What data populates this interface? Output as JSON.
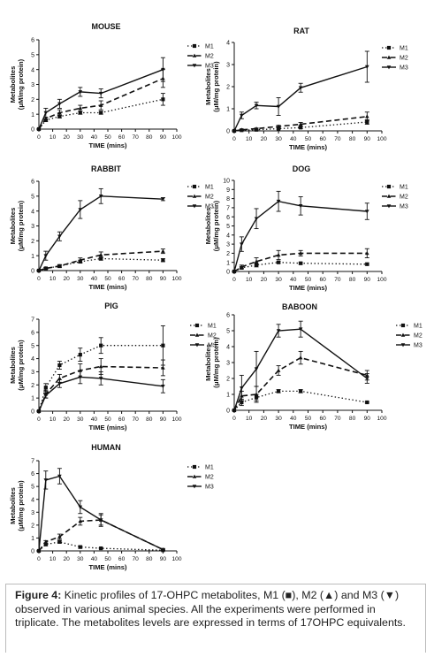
{
  "chart_data": [
    {
      "type": "line",
      "title": "MOUSE",
      "xlabel": "TIME (mins)",
      "ylabel": [
        "Metabolites",
        "(μM/mg protein)"
      ],
      "xlim": [
        0,
        100
      ],
      "ylim": [
        0,
        6
      ],
      "xticks": [
        0,
        10,
        20,
        30,
        40,
        50,
        60,
        70,
        80,
        90,
        100
      ],
      "yticks": [
        0,
        1,
        2,
        3,
        4,
        5,
        6
      ],
      "x": [
        0,
        5,
        15,
        30,
        45,
        90
      ],
      "series": [
        {
          "name": "M1",
          "values": [
            0,
            0.6,
            0.85,
            1.1,
            1.1,
            2.0
          ],
          "errors": [
            0,
            0.1,
            0.1,
            0.1,
            0.1,
            0.4
          ]
        },
        {
          "name": "M2",
          "values": [
            0,
            0.7,
            1.1,
            1.4,
            1.6,
            3.4
          ],
          "errors": [
            0,
            0.1,
            0.2,
            0.2,
            0.3,
            0.6
          ]
        },
        {
          "name": "M3",
          "values": [
            0,
            1.1,
            1.7,
            2.5,
            2.4,
            4.0
          ],
          "errors": [
            0,
            0.3,
            0.3,
            0.3,
            0.3,
            0.8
          ]
        }
      ],
      "legend": "top-right"
    },
    {
      "type": "line",
      "title": "RAT",
      "xlabel": "TIME (mins)",
      "ylabel": [
        "Metabolites",
        "(μM/mg protein)"
      ],
      "xlim": [
        0,
        100
      ],
      "ylim": [
        0,
        4
      ],
      "xticks": [
        0,
        10,
        20,
        30,
        40,
        50,
        60,
        70,
        80,
        90,
        100
      ],
      "yticks": [
        0,
        1,
        2,
        3,
        4
      ],
      "x": [
        0,
        5,
        15,
        30,
        45,
        90
      ],
      "series": [
        {
          "name": "M1",
          "values": [
            0,
            0.03,
            0.05,
            0.1,
            0.15,
            0.4
          ],
          "errors": [
            0,
            0.02,
            0.02,
            0.03,
            0.05,
            0.1
          ]
        },
        {
          "name": "M2",
          "values": [
            0,
            0.05,
            0.1,
            0.2,
            0.3,
            0.65
          ],
          "errors": [
            0,
            0.02,
            0.03,
            0.05,
            0.08,
            0.2
          ]
        },
        {
          "name": "M3",
          "values": [
            0,
            0.7,
            1.15,
            1.1,
            1.95,
            2.9
          ],
          "errors": [
            0,
            0.15,
            0.15,
            0.4,
            0.2,
            0.7
          ]
        }
      ],
      "legend": "top-right"
    },
    {
      "type": "line",
      "title": "RABBIT",
      "xlabel": "TIME (mins)",
      "ylabel": [
        "Metabolites",
        "(μM/mg protein)"
      ],
      "xlim": [
        0,
        100
      ],
      "ylim": [
        0,
        6
      ],
      "xticks": [
        0,
        10,
        20,
        30,
        40,
        50,
        60,
        70,
        80,
        90,
        100
      ],
      "yticks": [
        0,
        1,
        2,
        3,
        4,
        5,
        6
      ],
      "x": [
        0,
        5,
        15,
        30,
        45,
        90
      ],
      "series": [
        {
          "name": "M1",
          "values": [
            0,
            0.15,
            0.3,
            0.6,
            0.8,
            0.7
          ],
          "errors": [
            0,
            0.05,
            0.05,
            0.1,
            0.1,
            0.1
          ]
        },
        {
          "name": "M2",
          "values": [
            0,
            0.15,
            0.3,
            0.7,
            1.05,
            1.3
          ],
          "errors": [
            0,
            0.05,
            0.1,
            0.15,
            0.2,
            0.15
          ]
        },
        {
          "name": "M3",
          "values": [
            0,
            1.0,
            2.3,
            4.1,
            5.0,
            4.8
          ],
          "errors": [
            0,
            0.3,
            0.3,
            0.6,
            0.5,
            0.1
          ]
        }
      ],
      "legend": "top-right"
    },
    {
      "type": "line",
      "title": "DOG",
      "xlabel": "TIME (mins)",
      "ylabel": [
        "Metabolites",
        "(μM/mg protein)"
      ],
      "xlim": [
        0,
        100
      ],
      "ylim": [
        0,
        10
      ],
      "xticks": [
        0,
        10,
        20,
        30,
        40,
        50,
        60,
        70,
        80,
        90,
        100
      ],
      "yticks": [
        0,
        1,
        2,
        3,
        4,
        5,
        6,
        7,
        8,
        9,
        10
      ],
      "x": [
        0,
        5,
        15,
        30,
        45,
        90
      ],
      "series": [
        {
          "name": "M1",
          "values": [
            0,
            0.4,
            0.7,
            1.0,
            0.9,
            0.8
          ],
          "errors": [
            0,
            0.1,
            0.2,
            0.1,
            0.1,
            0.1
          ]
        },
        {
          "name": "M2",
          "values": [
            0,
            0.5,
            1.1,
            1.8,
            2.0,
            2.0
          ],
          "errors": [
            0,
            0.2,
            0.4,
            0.5,
            0.3,
            0.5
          ]
        },
        {
          "name": "M3",
          "values": [
            0,
            3.0,
            5.8,
            7.7,
            7.2,
            6.6
          ],
          "errors": [
            0,
            0.8,
            1.1,
            1.1,
            1.0,
            0.9
          ]
        }
      ],
      "legend": "top-right"
    },
    {
      "type": "line",
      "title": "PIG",
      "xlabel": "TIME (mins)",
      "ylabel": [
        "Metabolites",
        "(μM/mg protein)"
      ],
      "xlim": [
        0,
        100
      ],
      "ylim": [
        0,
        7
      ],
      "xticks": [
        0,
        10,
        20,
        30,
        40,
        50,
        60,
        70,
        80,
        90,
        100
      ],
      "yticks": [
        0,
        1,
        2,
        3,
        4,
        5,
        6,
        7
      ],
      "x": [
        0,
        5,
        15,
        30,
        45,
        90
      ],
      "series": [
        {
          "name": "M1",
          "values": [
            0,
            1.8,
            3.5,
            4.3,
            5.0,
            5.0
          ],
          "errors": [
            0,
            0.3,
            0.3,
            0.5,
            0.6,
            1.5
          ]
        },
        {
          "name": "M2",
          "values": [
            0,
            1.3,
            2.5,
            3.1,
            3.4,
            3.3
          ],
          "errors": [
            0,
            0.3,
            0.3,
            0.5,
            0.6,
            0.6
          ]
        },
        {
          "name": "M3",
          "values": [
            0,
            1.2,
            2.1,
            2.6,
            2.5,
            1.9
          ],
          "errors": [
            0,
            0.2,
            0.3,
            0.5,
            0.5,
            0.5
          ]
        }
      ],
      "legend": "top-right"
    },
    {
      "type": "line",
      "title": "BABOON",
      "xlabel": "TIME (mins)",
      "ylabel": [
        "Metabolites",
        "(μM/mg protein)"
      ],
      "xlim": [
        0,
        100
      ],
      "ylim": [
        0,
        6
      ],
      "xticks": [
        0,
        10,
        20,
        30,
        40,
        50,
        60,
        70,
        80,
        90,
        100
      ],
      "yticks": [
        0,
        1,
        2,
        3,
        4,
        5,
        6
      ],
      "x": [
        0,
        5,
        15,
        30,
        45,
        90
      ],
      "series": [
        {
          "name": "M1",
          "values": [
            0,
            0.5,
            0.8,
            1.2,
            1.2,
            0.5
          ],
          "errors": [
            0,
            0.2,
            0.2,
            0.1,
            0.1,
            0.05
          ]
        },
        {
          "name": "M2",
          "values": [
            0,
            0.9,
            1.0,
            2.5,
            3.3,
            2.2
          ],
          "errors": [
            0,
            0.3,
            0.5,
            0.3,
            0.4,
            0.3
          ]
        },
        {
          "name": "M3",
          "values": [
            0,
            1.4,
            2.6,
            5.0,
            5.1,
            2.0
          ],
          "errors": [
            0,
            0.8,
            1.1,
            0.4,
            0.5,
            0.3
          ]
        }
      ],
      "legend": "top-right"
    },
    {
      "type": "line",
      "title": "HUMAN",
      "xlabel": "TIME (mins)",
      "ylabel": [
        "Metabolites",
        "(μM/mg protein)"
      ],
      "xlim": [
        0,
        100
      ],
      "ylim": [
        0,
        7
      ],
      "xticks": [
        0,
        10,
        20,
        30,
        40,
        50,
        60,
        70,
        80,
        90,
        100
      ],
      "yticks": [
        0,
        1,
        2,
        3,
        4,
        5,
        6,
        7
      ],
      "x": [
        0,
        5,
        15,
        30,
        45,
        90
      ],
      "series": [
        {
          "name": "M1",
          "values": [
            0,
            0.5,
            0.7,
            0.3,
            0.2,
            0.05
          ],
          "errors": [
            0,
            0.1,
            0.1,
            0.1,
            0.05,
            0.02
          ]
        },
        {
          "name": "M2",
          "values": [
            0,
            0.7,
            1.1,
            2.3,
            2.4,
            0.1
          ],
          "errors": [
            0,
            0.1,
            0.2,
            0.3,
            0.5,
            0.05
          ]
        },
        {
          "name": "M3",
          "values": [
            0,
            5.5,
            5.8,
            3.4,
            2.4,
            0.1
          ],
          "errors": [
            0,
            0.7,
            0.6,
            0.5,
            0.4,
            0.05
          ]
        }
      ],
      "legend": "top-right"
    }
  ],
  "caption": {
    "label": "Figure 4:",
    "text": "Kinetic profiles of 17-OHPC metabolites, M1 (■), M2 (▲) and M3 (▼) observed in various animal species. All the experiments were performed in triplicate. The metabolites levels are expressed in terms of 17OHPC equivalents."
  }
}
